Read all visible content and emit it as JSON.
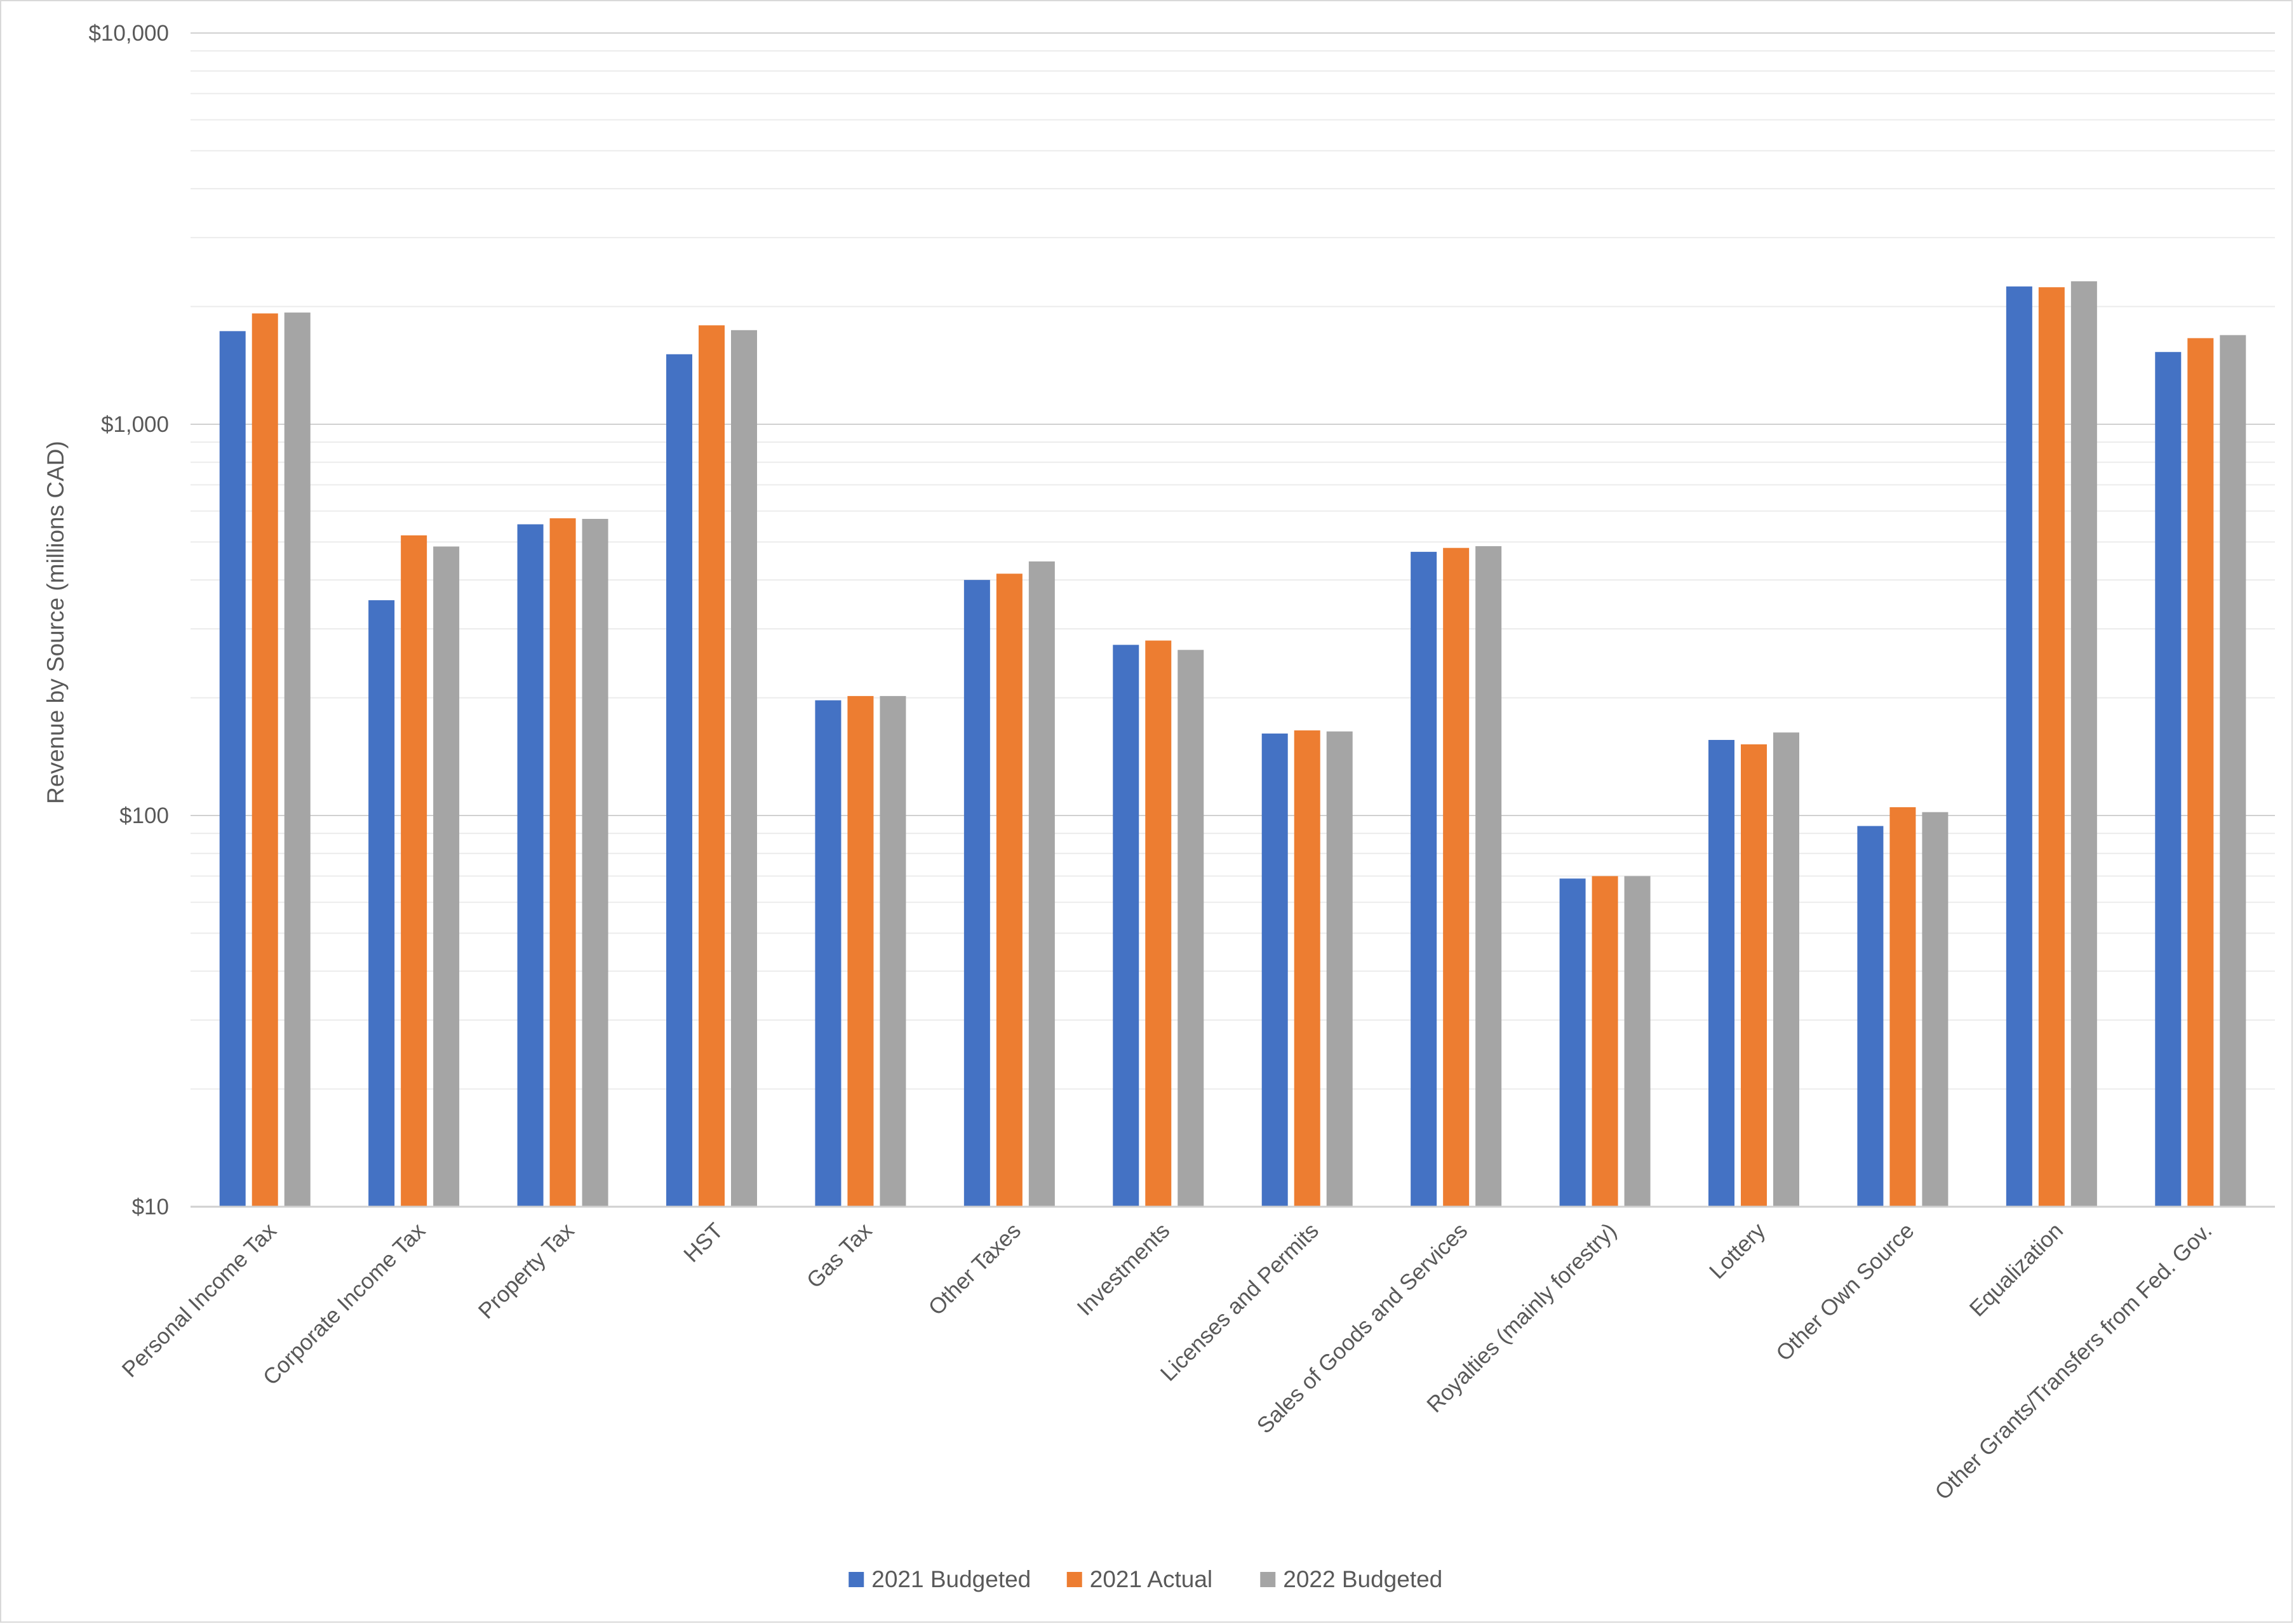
{
  "chart_data": {
    "type": "bar",
    "title": "",
    "xlabel": "",
    "ylabel": "Revenue by Source (millions CAD)",
    "yscale": "log",
    "ylim": [
      10,
      10000
    ],
    "yticks": [
      10,
      100,
      1000,
      10000
    ],
    "ytick_labels": [
      "$10",
      "$100",
      "$1,000",
      "$10,000"
    ],
    "grid": true,
    "legend_position": "bottom",
    "categories": [
      "Personal Income Tax",
      "Corporate Income Tax",
      "Property Tax",
      "HST",
      "Gas Tax",
      "Other Taxes",
      "Investments",
      "Licenses and Permits",
      "Sales of Goods and Services",
      "Royalties (mainly forestry)",
      "Lottery",
      "Other Own Source",
      "Equalization",
      "Other Grants/Transfers from Fed. Gov."
    ],
    "series": [
      {
        "name": "2021 Budgeted",
        "color": "#4472C4",
        "values": [
          1730,
          355,
          555,
          1510,
          197,
          400,
          273,
          162,
          472,
          69,
          156,
          94,
          2250,
          1530
        ]
      },
      {
        "name": "2021 Actual",
        "color": "#ED7D31",
        "values": [
          1920,
          520,
          575,
          1790,
          202,
          415,
          280,
          165,
          483,
          70,
          152,
          105,
          2240,
          1660
        ]
      },
      {
        "name": "2022 Budgeted",
        "color": "#A5A5A5",
        "values": [
          1930,
          487,
          573,
          1740,
          202,
          446,
          265,
          164,
          488,
          70,
          163,
          102,
          2320,
          1690
        ]
      }
    ]
  }
}
